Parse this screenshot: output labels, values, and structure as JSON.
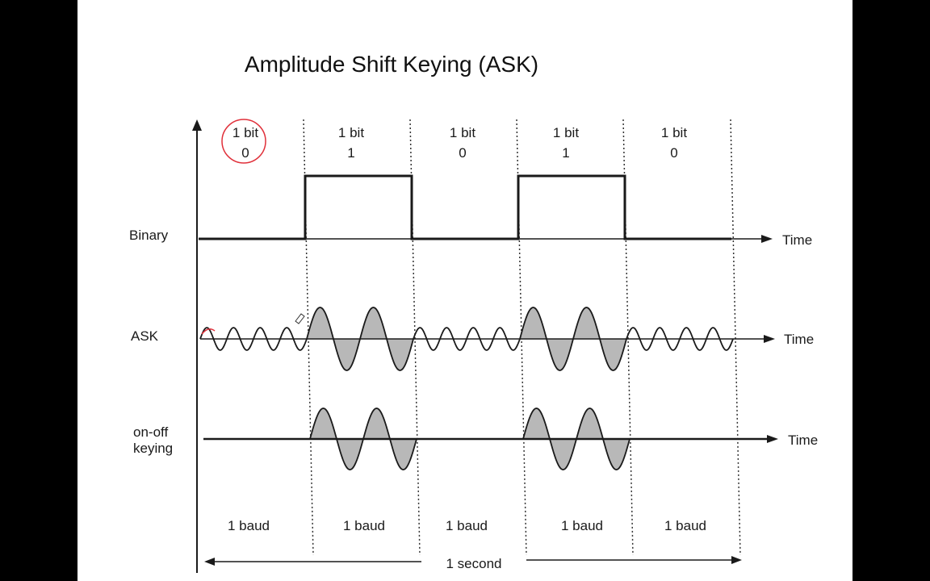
{
  "title": "Amplitude Shift Keying (ASK)",
  "bits": [
    {
      "label": "1 bit",
      "value": "0"
    },
    {
      "label": "1 bit",
      "value": "1"
    },
    {
      "label": "1 bit",
      "value": "0"
    },
    {
      "label": "1 bit",
      "value": "1"
    },
    {
      "label": "1 bit",
      "value": "0"
    }
  ],
  "rows": {
    "binary": "Binary",
    "ask": "ASK",
    "ook_line1": "on-off",
    "ook_line2": "keying"
  },
  "axis_label": "Time",
  "baud_labels": [
    "1 baud",
    "1 baud",
    "1 baud",
    "1 baud",
    "1 baud"
  ],
  "duration_label": "1 second",
  "colors": {
    "wave_fill": "#b8b8b8",
    "annotation": "#e0303a",
    "ink": "#1a1a1a"
  }
}
